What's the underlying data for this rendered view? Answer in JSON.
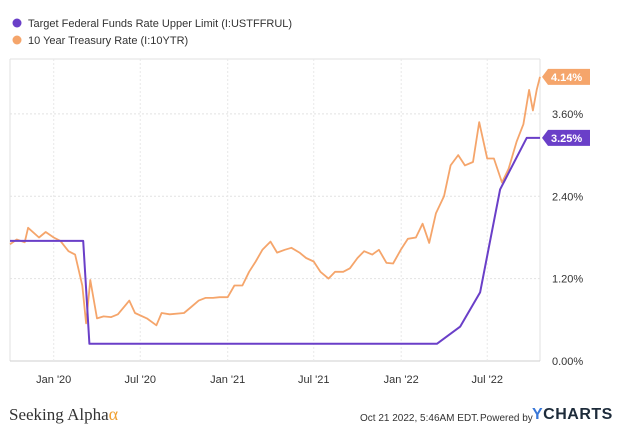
{
  "chart_data": {
    "type": "line",
    "series": [
      {
        "name": "Target Federal Funds Rate Upper Limit (I:USTFFRUL)",
        "color": "#6a3fc8",
        "end_label": "3.25%",
        "points": [
          [
            "2019-10-01",
            1.75
          ],
          [
            "2020-03-03",
            1.75
          ],
          [
            "2020-03-16",
            0.25
          ],
          [
            "2022-03-17",
            0.25
          ],
          [
            "2022-05-05",
            0.5
          ],
          [
            "2022-06-16",
            1.0
          ],
          [
            "2022-07-28",
            2.5
          ],
          [
            "2022-09-22",
            3.25
          ],
          [
            "2022-10-20",
            3.25
          ]
        ]
      },
      {
        "name": "10 Year Treasury Rate (I:10YTR)",
        "color": "#f5a56b",
        "end_label": "4.14%",
        "points": [
          [
            "2019-10-01",
            1.7
          ],
          [
            "2019-10-15",
            1.77
          ],
          [
            "2019-11-01",
            1.73
          ],
          [
            "2019-11-08",
            1.94
          ],
          [
            "2019-12-01",
            1.8
          ],
          [
            "2019-12-15",
            1.88
          ],
          [
            "2020-01-01",
            1.8
          ],
          [
            "2020-01-15",
            1.75
          ],
          [
            "2020-02-01",
            1.6
          ],
          [
            "2020-02-15",
            1.55
          ],
          [
            "2020-03-01",
            1.1
          ],
          [
            "2020-03-09",
            0.55
          ],
          [
            "2020-03-18",
            1.18
          ],
          [
            "2020-04-01",
            0.62
          ],
          [
            "2020-04-15",
            0.65
          ],
          [
            "2020-05-01",
            0.64
          ],
          [
            "2020-05-15",
            0.68
          ],
          [
            "2020-06-08",
            0.88
          ],
          [
            "2020-06-20",
            0.7
          ],
          [
            "2020-07-15",
            0.62
          ],
          [
            "2020-08-04",
            0.52
          ],
          [
            "2020-08-15",
            0.7
          ],
          [
            "2020-09-01",
            0.68
          ],
          [
            "2020-10-01",
            0.7
          ],
          [
            "2020-10-15",
            0.78
          ],
          [
            "2020-11-01",
            0.88
          ],
          [
            "2020-11-15",
            0.92
          ],
          [
            "2020-12-01",
            0.92
          ],
          [
            "2020-12-15",
            0.93
          ],
          [
            "2021-01-01",
            0.93
          ],
          [
            "2021-01-15",
            1.1
          ],
          [
            "2021-02-01",
            1.1
          ],
          [
            "2021-02-15",
            1.3
          ],
          [
            "2021-03-01",
            1.45
          ],
          [
            "2021-03-15",
            1.62
          ],
          [
            "2021-04-01",
            1.74
          ],
          [
            "2021-04-15",
            1.58
          ],
          [
            "2021-05-01",
            1.62
          ],
          [
            "2021-05-15",
            1.65
          ],
          [
            "2021-06-01",
            1.58
          ],
          [
            "2021-06-15",
            1.5
          ],
          [
            "2021-07-01",
            1.45
          ],
          [
            "2021-07-15",
            1.3
          ],
          [
            "2021-08-01",
            1.2
          ],
          [
            "2021-08-15",
            1.3
          ],
          [
            "2021-09-01",
            1.3
          ],
          [
            "2021-09-15",
            1.35
          ],
          [
            "2021-10-01",
            1.5
          ],
          [
            "2021-10-15",
            1.6
          ],
          [
            "2021-11-01",
            1.55
          ],
          [
            "2021-11-15",
            1.62
          ],
          [
            "2021-12-01",
            1.43
          ],
          [
            "2021-12-15",
            1.42
          ],
          [
            "2022-01-01",
            1.63
          ],
          [
            "2022-01-15",
            1.78
          ],
          [
            "2022-02-01",
            1.8
          ],
          [
            "2022-02-15",
            2.0
          ],
          [
            "2022-03-01",
            1.72
          ],
          [
            "2022-03-15",
            2.15
          ],
          [
            "2022-04-01",
            2.4
          ],
          [
            "2022-04-15",
            2.85
          ],
          [
            "2022-05-01",
            3.0
          ],
          [
            "2022-05-15",
            2.85
          ],
          [
            "2022-06-01",
            2.9
          ],
          [
            "2022-06-14",
            3.48
          ],
          [
            "2022-07-01",
            2.95
          ],
          [
            "2022-07-15",
            2.95
          ],
          [
            "2022-08-01",
            2.6
          ],
          [
            "2022-08-15",
            2.8
          ],
          [
            "2022-09-01",
            3.2
          ],
          [
            "2022-09-15",
            3.45
          ],
          [
            "2022-09-27",
            3.95
          ],
          [
            "2022-10-05",
            3.65
          ],
          [
            "2022-10-13",
            3.95
          ],
          [
            "2022-10-20",
            4.14
          ]
        ]
      }
    ],
    "xlim": [
      "2019-10-01",
      "2022-10-20"
    ],
    "ylim": [
      0,
      4.4
    ],
    "x_ticks": [
      {
        "date": "2020-01-01",
        "label": "Jan '20"
      },
      {
        "date": "2020-07-01",
        "label": "Jul '20"
      },
      {
        "date": "2021-01-01",
        "label": "Jan '21"
      },
      {
        "date": "2021-07-01",
        "label": "Jul '21"
      },
      {
        "date": "2022-01-01",
        "label": "Jan '22"
      },
      {
        "date": "2022-07-01",
        "label": "Jul '22"
      }
    ],
    "y_ticks": [
      {
        "value": 0,
        "label": "0.00%"
      },
      {
        "value": 1.2,
        "label": "1.20%"
      },
      {
        "value": 2.4,
        "label": "2.40%"
      },
      {
        "value": 3.6,
        "label": "3.60%"
      }
    ],
    "grid": true,
    "legend": "top-left"
  },
  "footer": {
    "brand": "Seeking Alpha",
    "brand_mark": "α",
    "timestamp": "Oct 21 2022, 5:46AM EDT.",
    "powered_by": "Powered by",
    "provider_y": "Y",
    "provider_rest": "CHARTS"
  }
}
